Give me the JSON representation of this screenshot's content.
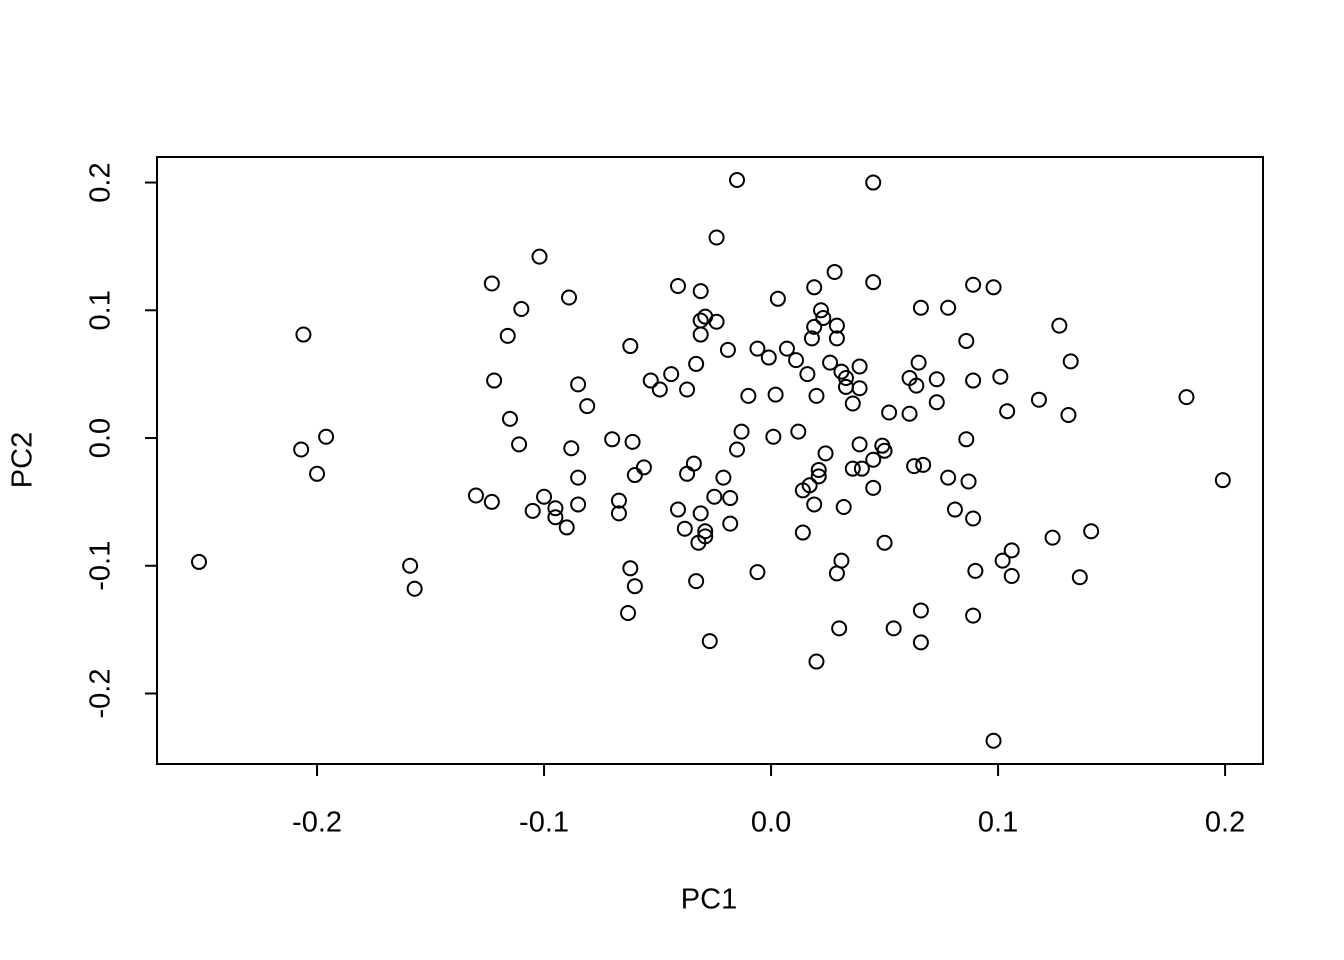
{
  "chart_data": {
    "type": "scatter",
    "x_label": "PC1",
    "y_label": "PC2",
    "x": [
      -0.252,
      -0.206,
      -0.207,
      -0.196,
      -0.2,
      -0.159,
      -0.157,
      -0.13,
      -0.123,
      -0.123,
      -0.122,
      -0.116,
      -0.115,
      -0.111,
      -0.11,
      -0.105,
      -0.102,
      -0.1,
      -0.095,
      -0.095,
      -0.09,
      -0.089,
      -0.088,
      -0.085,
      -0.085,
      -0.085,
      -0.081,
      -0.07,
      -0.067,
      -0.067,
      -0.062,
      -0.061,
      -0.062,
      -0.06,
      -0.063,
      -0.06,
      -0.056,
      -0.053,
      -0.049,
      -0.044,
      -0.041,
      -0.041,
      -0.038,
      -0.037,
      -0.037,
      -0.034,
      -0.033,
      -0.033,
      -0.032,
      -0.031,
      -0.031,
      -0.031,
      -0.031,
      -0.029,
      -0.029,
      -0.029,
      -0.027,
      -0.025,
      -0.024,
      -0.024,
      -0.021,
      -0.019,
      -0.018,
      -0.018,
      -0.015,
      -0.015,
      -0.013,
      -0.01,
      -0.006,
      -0.006,
      -0.001,
      0.001,
      0.002,
      0.003,
      0.007,
      0.011,
      0.012,
      0.014,
      0.014,
      0.016,
      0.017,
      0.019,
      0.018,
      0.019,
      0.019,
      0.02,
      0.02,
      0.021,
      0.021,
      0.022,
      0.023,
      0.024,
      0.026,
      0.028,
      0.029,
      0.029,
      0.029,
      0.031,
      0.031,
      0.03,
      0.032,
      0.033,
      0.033,
      0.036,
      0.036,
      0.039,
      0.039,
      0.039,
      0.04,
      0.045,
      0.045,
      0.045,
      0.045,
      0.049,
      0.05,
      0.05,
      0.052,
      0.054,
      0.061,
      0.061,
      0.063,
      0.064,
      0.065,
      0.066,
      0.066,
      0.066,
      0.067,
      0.073,
      0.073,
      0.078,
      0.078,
      0.081,
      0.086,
      0.086,
      0.087,
      0.089,
      0.089,
      0.089,
      0.089,
      0.09,
      0.098,
      0.098,
      0.101,
      0.102,
      0.104,
      0.106,
      0.106,
      0.118,
      0.124,
      0.127,
      0.131,
      0.132,
      0.136,
      0.141,
      0.183,
      0.199
    ],
    "values": [
      -0.097,
      0.081,
      -0.009,
      0.001,
      -0.028,
      -0.1,
      -0.118,
      -0.045,
      -0.05,
      0.121,
      0.045,
      0.08,
      0.015,
      -0.005,
      0.101,
      -0.057,
      0.142,
      -0.046,
      -0.055,
      -0.062,
      -0.07,
      0.11,
      -0.008,
      0.042,
      -0.031,
      -0.052,
      0.025,
      -0.001,
      -0.049,
      -0.059,
      0.072,
      -0.003,
      -0.102,
      -0.116,
      -0.137,
      -0.029,
      -0.023,
      0.045,
      0.038,
      0.05,
      0.119,
      -0.056,
      -0.071,
      0.038,
      -0.028,
      -0.02,
      0.058,
      -0.112,
      -0.082,
      0.081,
      0.115,
      0.092,
      -0.059,
      0.095,
      -0.073,
      -0.077,
      -0.159,
      -0.046,
      0.091,
      0.157,
      -0.031,
      0.069,
      -0.047,
      -0.067,
      -0.009,
      0.202,
      0.005,
      0.033,
      -0.105,
      0.07,
      0.063,
      0.001,
      0.034,
      0.109,
      0.07,
      0.061,
      0.005,
      -0.074,
      -0.041,
      0.05,
      -0.037,
      0.118,
      0.078,
      0.087,
      -0.052,
      0.033,
      -0.175,
      -0.025,
      -0.03,
      0.1,
      0.094,
      -0.012,
      0.059,
      0.13,
      0.088,
      0.078,
      -0.106,
      0.052,
      -0.096,
      -0.149,
      -0.054,
      0.047,
      0.04,
      0.027,
      -0.024,
      0.056,
      -0.005,
      0.039,
      -0.024,
      0.122,
      0.2,
      -0.039,
      -0.017,
      -0.006,
      -0.01,
      -0.082,
      0.02,
      -0.149,
      0.047,
      0.019,
      -0.022,
      0.041,
      0.059,
      0.102,
      -0.135,
      -0.16,
      -0.021,
      0.046,
      0.028,
      -0.031,
      0.102,
      -0.056,
      -0.001,
      0.076,
      -0.034,
      0.12,
      0.045,
      -0.139,
      -0.063,
      -0.104,
      0.118,
      -0.237,
      0.048,
      -0.096,
      0.021,
      -0.088,
      -0.108,
      0.03,
      -0.078,
      0.088,
      0.018,
      0.06,
      -0.109,
      -0.073,
      0.032,
      -0.033
    ],
    "color": "#000000",
    "xlim": [
      -0.2705,
      0.2167
    ],
    "ylim": [
      -0.2552,
      0.22
    ],
    "xticks": [
      -0.2,
      -0.1,
      {
        "value": 0,
        "label": "0.0"
      },
      0.1,
      0.2
    ],
    "yticks": [
      -0.2,
      -0.1,
      {
        "value": 0,
        "label": "0.0"
      },
      0.1,
      0.2
    ]
  }
}
